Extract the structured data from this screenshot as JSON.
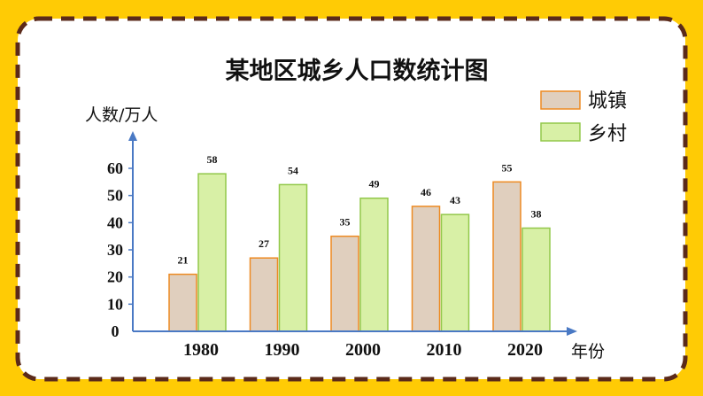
{
  "colors": {
    "frame_yellow": "#FFCB05",
    "dash_brown": "#5B2A1A",
    "panel_white": "#FFFFFF",
    "urban_fill": "#E0CFBE",
    "urban_stroke": "#ED8A22",
    "rural_fill": "#D8F0A6",
    "rural_stroke": "#92C84A",
    "axis_blue": "#4A79C4",
    "text": "#111111"
  },
  "chart_data": {
    "type": "bar",
    "title": "某地区城乡人口数统计图",
    "ylabel": "人数/万人",
    "xlabel": "年份",
    "ylim": [
      0,
      60
    ],
    "yticks": [
      "0",
      "10",
      "20",
      "30",
      "40",
      "50",
      "60"
    ],
    "categories": [
      "1980",
      "1990",
      "2000",
      "2010",
      "2020"
    ],
    "series": [
      {
        "name": "城镇",
        "values": [
          21,
          27,
          35,
          46,
          55
        ]
      },
      {
        "name": "乡村",
        "values": [
          58,
          54,
          49,
          43,
          38
        ]
      }
    ],
    "legend": "top-right",
    "grid": false
  }
}
